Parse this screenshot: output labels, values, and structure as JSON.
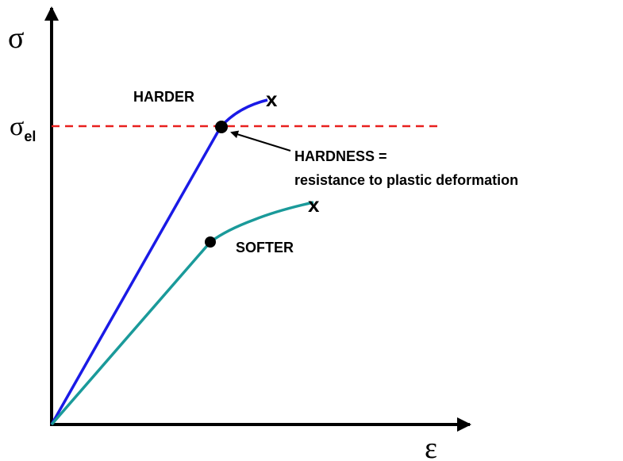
{
  "axes": {
    "y_label": "σ",
    "x_label": "ε"
  },
  "threshold": {
    "symbol": "σ",
    "subscript": "el"
  },
  "curves": [
    {
      "label": "HARDER",
      "end_marker": "x"
    },
    {
      "label": "SOFTER",
      "end_marker": "x"
    }
  ],
  "annotation": {
    "lines": [
      "HARDNESS =",
      "resistance to plastic deformation"
    ]
  }
}
